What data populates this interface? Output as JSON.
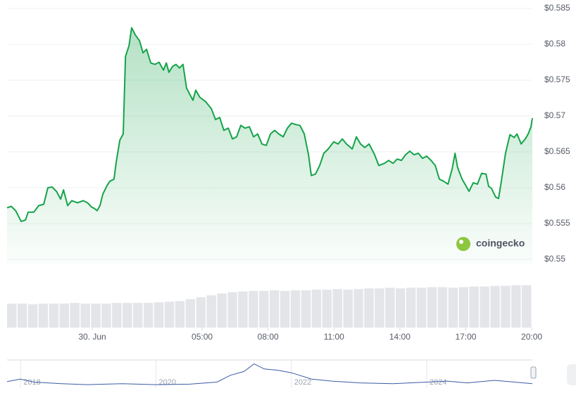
{
  "chart_data": {
    "type": "line",
    "color": "#16a34a",
    "x": [
      -3.88,
      -3.69,
      -3.49,
      -3.24,
      -3.04,
      -2.92,
      -2.66,
      -2.44,
      -2.21,
      -2.02,
      -1.83,
      -1.63,
      -1.44,
      -1.31,
      -1.12,
      -0.93,
      -0.67,
      -0.42,
      -0.22,
      -0.03,
      0.1,
      0.22,
      0.35,
      0.48,
      0.67,
      0.8,
      0.99,
      1.09,
      1.25,
      1.41,
      1.51,
      1.67,
      1.79,
      1.96,
      2.15,
      2.31,
      2.47,
      2.66,
      2.85,
      3.04,
      3.24,
      3.37,
      3.49,
      3.65,
      3.81,
      3.97,
      4.13,
      4.29,
      4.46,
      4.58,
      4.71,
      4.9,
      5.16,
      5.42,
      5.61,
      5.8,
      5.99,
      6.19,
      6.38,
      6.57,
      6.76,
      6.95,
      7.15,
      7.34,
      7.53,
      7.72,
      7.92,
      8.11,
      8.3,
      8.49,
      8.69,
      8.88,
      9.07,
      9.26,
      9.45,
      9.65,
      9.84,
      9.97,
      10.16,
      10.35,
      10.54,
      10.74,
      10.99,
      11.19,
      11.38,
      11.57,
      11.83,
      12.02,
      12.21,
      12.4,
      12.6,
      12.85,
      13.04,
      13.3,
      13.49,
      13.69,
      13.88,
      14.07,
      14.26,
      14.45,
      14.65,
      14.84,
      15.03,
      15.22,
      15.42,
      15.61,
      15.8,
      15.99,
      16.19,
      16.38,
      16.51,
      16.63,
      16.83,
      17.02,
      17.15,
      17.34,
      17.53,
      17.72,
      17.92,
      18.04,
      18.17,
      18.36,
      18.49,
      18.62,
      18.81,
      19.01,
      19.2,
      19.33,
      19.52,
      19.71,
      19.84,
      19.97,
      20.03
    ],
    "values": [
      0.5572,
      0.5574,
      0.5568,
      0.5553,
      0.5555,
      0.5566,
      0.5566,
      0.5575,
      0.5577,
      0.56,
      0.5601,
      0.5595,
      0.5584,
      0.5597,
      0.5575,
      0.5582,
      0.5579,
      0.5582,
      0.5579,
      0.5573,
      0.5571,
      0.5568,
      0.5575,
      0.5591,
      0.5603,
      0.5609,
      0.5612,
      0.5636,
      0.5666,
      0.5675,
      0.5783,
      0.5798,
      0.5823,
      0.5813,
      0.5805,
      0.5788,
      0.5793,
      0.5774,
      0.5772,
      0.5775,
      0.5764,
      0.5774,
      0.5761,
      0.5769,
      0.5772,
      0.5767,
      0.5772,
      0.5739,
      0.5729,
      0.5722,
      0.5736,
      0.5726,
      0.572,
      0.571,
      0.5695,
      0.5698,
      0.568,
      0.5683,
      0.5668,
      0.5671,
      0.5687,
      0.5683,
      0.5685,
      0.5671,
      0.5675,
      0.5661,
      0.5659,
      0.5675,
      0.568,
      0.5675,
      0.5671,
      0.5683,
      0.569,
      0.5688,
      0.5687,
      0.5675,
      0.5646,
      0.5617,
      0.5619,
      0.5631,
      0.5648,
      0.5654,
      0.5664,
      0.5661,
      0.5668,
      0.5661,
      0.5654,
      0.5671,
      0.5661,
      0.5656,
      0.5661,
      0.5646,
      0.5631,
      0.5634,
      0.5638,
      0.5634,
      0.564,
      0.5638,
      0.5646,
      0.5651,
      0.5646,
      0.5648,
      0.5641,
      0.5644,
      0.5638,
      0.5631,
      0.5612,
      0.5609,
      0.5605,
      0.5626,
      0.5648,
      0.5628,
      0.5612,
      0.5602,
      0.5595,
      0.5607,
      0.5605,
      0.562,
      0.5619,
      0.5602,
      0.5599,
      0.5587,
      0.5585,
      0.5609,
      0.5648,
      0.5674,
      0.567,
      0.5675,
      0.5661,
      0.5668,
      0.5675,
      0.5685,
      0.5697
    ],
    "xlim": [
      -3.88,
      20.03
    ],
    "xticks": [
      {
        "value": 0,
        "label": "30. Jun"
      },
      {
        "value": 5,
        "label": "05:00"
      },
      {
        "value": 8,
        "label": "08:00"
      },
      {
        "value": 11,
        "label": "11:00"
      },
      {
        "value": 14,
        "label": "14:00"
      },
      {
        "value": 17,
        "label": "17:00"
      },
      {
        "value": 20,
        "label": "20:00"
      }
    ],
    "ylim": [
      0.55,
      0.585
    ],
    "yticks": [
      {
        "value": 0.55,
        "label": "$0.55"
      },
      {
        "value": 0.555,
        "label": "$0.555"
      },
      {
        "value": 0.56,
        "label": "$0.56"
      },
      {
        "value": 0.565,
        "label": "$0.565"
      },
      {
        "value": 0.57,
        "label": "$0.57"
      },
      {
        "value": 0.575,
        "label": "$0.575"
      },
      {
        "value": 0.58,
        "label": "$0.58"
      },
      {
        "value": 0.585,
        "label": "$0.585"
      }
    ],
    "grid": true,
    "watermark": "coingecko",
    "volume": {
      "color": "#e3e5e8",
      "lim": [
        0,
        100
      ],
      "values": [
        38,
        38,
        37,
        38,
        38,
        38,
        39,
        38,
        38,
        38,
        39,
        39,
        39,
        39,
        40,
        41,
        42,
        45,
        48,
        51,
        54,
        56,
        57,
        58,
        58,
        59,
        58,
        59,
        59,
        60,
        60,
        61,
        60,
        61,
        62,
        62,
        63,
        62,
        63,
        63,
        64,
        64,
        63,
        64,
        65,
        65,
        66,
        66,
        67,
        67
      ]
    },
    "navigator": {
      "color": "#3b5ba5",
      "x": [
        2017.8,
        2018.0,
        2018.2,
        2018.6,
        2019.0,
        2019.5,
        2020.0,
        2020.5,
        2020.9,
        2021.1,
        2021.3,
        2021.45,
        2021.6,
        2021.8,
        2022.0,
        2022.3,
        2022.6,
        2023.0,
        2023.5,
        2024.0,
        2024.3,
        2024.6,
        2025.0,
        2025.3,
        2025.56
      ],
      "values": [
        20,
        30,
        18,
        12,
        8,
        12,
        8,
        10,
        18,
        45,
        60,
        90,
        70,
        65,
        55,
        30,
        22,
        15,
        12,
        18,
        22,
        15,
        25,
        18,
        12
      ],
      "xlim": [
        2017.8,
        2025.56
      ],
      "ylim": [
        0,
        100
      ],
      "xticks": [
        2018,
        2020,
        2022,
        2024
      ]
    }
  }
}
